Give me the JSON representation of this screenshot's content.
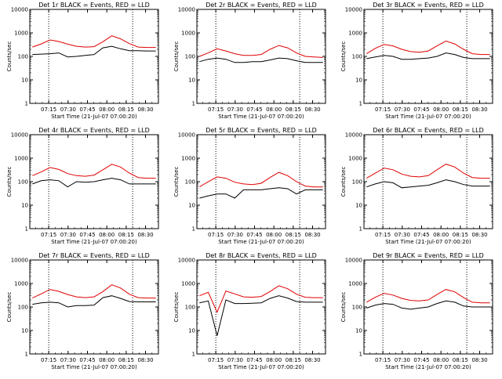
{
  "chart_data": [
    {
      "type": "line",
      "title": "Det 1r BLACK = Events, RED = LLD",
      "xlabel": "Start Time (21-Jul-07 07:00:20)",
      "ylabel": "Counts/sec",
      "yscale": "log",
      "ylim": [
        1,
        10000
      ],
      "x_ticks": [
        "07:15",
        "07:30",
        "07:45",
        "08:00",
        "08:15",
        "08:30"
      ],
      "y_ticks": [
        "1",
        "10",
        "100",
        "1000",
        "10000"
      ],
      "markers": [
        "07:15",
        "08:20"
      ],
      "series": [
        {
          "color": "#000000",
          "values": [
            120,
            125,
            130,
            140,
            95,
            100,
            110,
            120,
            230,
            270,
            210,
            175,
            175,
            170,
            170
          ]
        },
        {
          "color": "#e00000",
          "values": [
            250,
            340,
            500,
            430,
            330,
            270,
            250,
            260,
            420,
            750,
            560,
            350,
            250,
            240,
            240
          ]
        }
      ]
    },
    {
      "type": "line",
      "title": "Det 2r BLACK = Events, RED = LLD",
      "xlabel": "Start Time (21-Jul-07 07:00:20)",
      "ylabel": "Counts/sec",
      "yscale": "log",
      "ylim": [
        1,
        10000
      ],
      "x_ticks": [
        "07:15",
        "07:30",
        "07:45",
        "08:00",
        "08:15",
        "08:30"
      ],
      "y_ticks": [
        "1",
        "10",
        "100",
        "1000",
        "10000"
      ],
      "markers": [
        "07:15",
        "08:20"
      ],
      "series": [
        {
          "color": "#000000",
          "values": [
            60,
            75,
            85,
            75,
            55,
            55,
            60,
            60,
            70,
            85,
            80,
            65,
            55,
            55,
            55
          ]
        },
        {
          "color": "#e00000",
          "values": [
            100,
            140,
            210,
            170,
            130,
            110,
            110,
            120,
            200,
            290,
            230,
            140,
            100,
            95,
            90
          ]
        }
      ]
    },
    {
      "type": "line",
      "title": "Det 3r BLACK = Events, RED = LLD",
      "xlabel": "Start Time (21-Jul-07 07:00:20)",
      "ylabel": "Counts/sec",
      "yscale": "log",
      "ylim": [
        1,
        10000
      ],
      "x_ticks": [
        "07:15",
        "07:30",
        "07:45",
        "08:00",
        "08:15",
        "08:30"
      ],
      "y_ticks": [
        "1",
        "10",
        "100",
        "1000",
        "10000"
      ],
      "markers": [
        "07:15",
        "08:20"
      ],
      "series": [
        {
          "color": "#000000",
          "values": [
            80,
            95,
            110,
            100,
            75,
            75,
            80,
            85,
            100,
            140,
            120,
            90,
            80,
            80,
            80
          ]
        },
        {
          "color": "#e00000",
          "values": [
            130,
            220,
            320,
            280,
            200,
            160,
            150,
            170,
            280,
            450,
            340,
            200,
            130,
            120,
            120
          ]
        }
      ]
    },
    {
      "type": "line",
      "title": "Det 4r BLACK = Events, RED = LLD",
      "xlabel": "Start Time (21-Jul-07 07:00:20)",
      "ylabel": "Counts/sec",
      "yscale": "log",
      "ylim": [
        1,
        10000
      ],
      "x_ticks": [
        "07:15",
        "07:30",
        "07:45",
        "08:00",
        "08:15",
        "08:30"
      ],
      "y_ticks": [
        "1",
        "10",
        "100",
        "1000",
        "10000"
      ],
      "markers": [
        "07:15",
        "08:20"
      ],
      "series": [
        {
          "color": "#000000",
          "values": [
            80,
            110,
            120,
            110,
            60,
            100,
            95,
            100,
            120,
            140,
            120,
            80,
            80,
            80,
            80
          ]
        },
        {
          "color": "#e00000",
          "values": [
            180,
            260,
            400,
            330,
            220,
            180,
            170,
            190,
            320,
            550,
            420,
            230,
            150,
            140,
            140
          ]
        }
      ]
    },
    {
      "type": "line",
      "title": "Det 5r BLACK = Events, RED = LLD",
      "xlabel": "Start Time (21-Jul-07 07:00:20)",
      "ylabel": "Counts/sec",
      "yscale": "log",
      "ylim": [
        1,
        10000
      ],
      "x_ticks": [
        "07:15",
        "07:30",
        "07:45",
        "08:00",
        "08:15",
        "08:30"
      ],
      "y_ticks": [
        "1",
        "10",
        "100",
        "1000",
        "10000"
      ],
      "markers": [
        "07:15",
        "08:20"
      ],
      "series": [
        {
          "color": "#000000",
          "values": [
            20,
            25,
            30,
            30,
            20,
            45,
            45,
            45,
            50,
            55,
            50,
            30,
            45,
            45,
            45
          ]
        },
        {
          "color": "#e00000",
          "values": [
            60,
            100,
            160,
            140,
            95,
            80,
            75,
            85,
            150,
            250,
            180,
            100,
            65,
            60,
            60
          ]
        }
      ]
    },
    {
      "type": "line",
      "title": "Det 6r BLACK = Events, RED = LLD",
      "xlabel": "Start Time (21-Jul-07 07:00:20)",
      "ylabel": "Counts/sec",
      "yscale": "log",
      "ylim": [
        1,
        10000
      ],
      "x_ticks": [
        "07:15",
        "07:30",
        "07:45",
        "08:00",
        "08:15",
        "08:30"
      ],
      "y_ticks": [
        "1",
        "10",
        "100",
        "1000",
        "10000"
      ],
      "markers": [
        "07:15",
        "08:20"
      ],
      "series": [
        {
          "color": "#000000",
          "values": [
            60,
            80,
            100,
            90,
            55,
            60,
            65,
            70,
            90,
            120,
            100,
            75,
            65,
            65,
            65
          ]
        },
        {
          "color": "#e00000",
          "values": [
            140,
            230,
            380,
            320,
            210,
            170,
            160,
            180,
            320,
            560,
            420,
            230,
            150,
            140,
            140
          ]
        }
      ]
    },
    {
      "type": "line",
      "title": "Det 7r BLACK = Events, RED = LLD",
      "xlabel": "Start Time (21-Jul-07 07:00:20)",
      "ylabel": "Counts/sec",
      "yscale": "log",
      "ylim": [
        1,
        10000
      ],
      "x_ticks": [
        "07:15",
        "07:30",
        "07:45",
        "08:00",
        "08:15",
        "08:30"
      ],
      "y_ticks": [
        "1",
        "10",
        "100",
        "1000",
        "10000"
      ],
      "markers": [
        "07:15",
        "08:20"
      ],
      "series": [
        {
          "color": "#000000",
          "values": [
            130,
            150,
            160,
            150,
            100,
            115,
            115,
            120,
            250,
            300,
            230,
            170,
            165,
            165,
            165
          ]
        },
        {
          "color": "#e00000",
          "values": [
            240,
            360,
            560,
            460,
            340,
            270,
            250,
            270,
            450,
            880,
            640,
            350,
            250,
            240,
            240
          ]
        }
      ]
    },
    {
      "type": "line",
      "title": "Det 8r BLACK = Events, RED = LLD",
      "xlabel": "Start Time (21-Jul-07 07:00:20)",
      "ylabel": "Counts/sec",
      "yscale": "log",
      "ylim": [
        1,
        10000
      ],
      "x_ticks": [
        "07:15",
        "07:30",
        "07:45",
        "08:00",
        "08:15",
        "08:30"
      ],
      "y_ticks": [
        "1",
        "10",
        "100",
        "1000",
        "10000"
      ],
      "markers": [
        "07:15",
        "08:20"
      ],
      "series": [
        {
          "color": "#000000",
          "values": [
            150,
            180,
            6,
            200,
            140,
            140,
            145,
            150,
            230,
            300,
            240,
            170,
            160,
            160,
            160
          ]
        },
        {
          "color": "#e00000",
          "values": [
            300,
            420,
            60,
            480,
            360,
            270,
            260,
            280,
            450,
            800,
            600,
            350,
            260,
            250,
            250
          ]
        }
      ]
    },
    {
      "type": "line",
      "title": "Det 9r BLACK = Events, RED = LLD",
      "xlabel": "Start Time (21-Jul-07 07:00:20)",
      "ylabel": "Counts/sec",
      "yscale": "log",
      "ylim": [
        1,
        10000
      ],
      "x_ticks": [
        "07:15",
        "07:30",
        "07:45",
        "08:00",
        "08:15",
        "08:30"
      ],
      "y_ticks": [
        "1",
        "10",
        "100",
        "1000",
        "10000"
      ],
      "markers": [
        "07:15",
        "08:20"
      ],
      "series": [
        {
          "color": "#000000",
          "values": [
            90,
            120,
            140,
            130,
            90,
            80,
            90,
            100,
            140,
            180,
            160,
            110,
            100,
            100,
            100
          ]
        },
        {
          "color": "#e00000",
          "values": [
            160,
            260,
            380,
            320,
            230,
            190,
            180,
            200,
            340,
            560,
            440,
            250,
            160,
            150,
            150
          ]
        }
      ]
    }
  ]
}
